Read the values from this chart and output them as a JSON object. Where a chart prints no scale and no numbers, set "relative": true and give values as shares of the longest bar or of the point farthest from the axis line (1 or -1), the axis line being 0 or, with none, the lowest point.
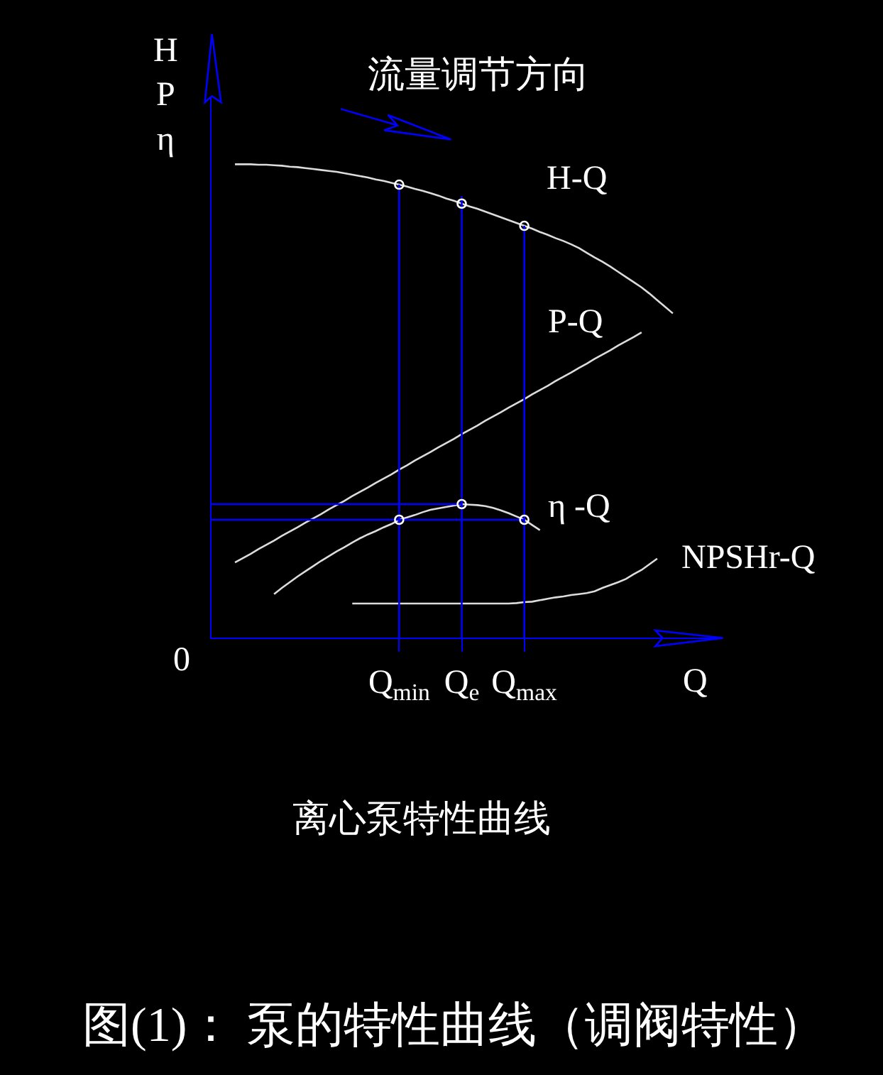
{
  "chart_data": {
    "type": "line",
    "title": "离心泵特性曲线",
    "xlabel": "Q",
    "ylabel": "H\nP\nη",
    "annotations": [
      "流量调节方向",
      "0",
      "图(1)： 泵的特性曲线（调阀特性）"
    ],
    "relative": true,
    "categories": [
      null,
      null,
      null,
      null,
      null,
      null,
      null,
      null,
      null,
      null,
      null,
      null,
      null,
      null,
      null,
      null,
      null,
      null,
      null,
      null,
      null,
      null,
      null,
      null,
      "Q$_{min}$",
      null,
      null,
      null,
      null,
      null,
      null,
      null,
      "Q$_{e}$",
      null,
      null,
      null,
      null,
      null,
      null,
      null,
      "Q$_{max}$",
      null,
      null,
      null,
      null,
      null,
      null,
      null,
      null,
      null,
      null,
      null,
      null,
      null,
      null,
      null,
      null,
      null,
      null,
      null,
      null,
      null,
      null,
      null,
      null,
      null
    ],
    "series": [
      {
        "name": "H-Q",
        "color": "#dcdcdc",
        "values": [
          null,
          null,
          null,
          1.0,
          1.0,
          1.0,
          0.999,
          0.999,
          0.998,
          0.997,
          0.995,
          0.994,
          0.992,
          0.99,
          0.988,
          0.986,
          0.984,
          0.981,
          0.978,
          0.975,
          0.972,
          0.968,
          0.965,
          0.961,
          0.957,
          0.953,
          0.948,
          0.944,
          0.939,
          0.934,
          0.928,
          0.923,
          0.917,
          0.911,
          0.906,
          0.9,
          0.894,
          0.888,
          0.882,
          0.876,
          0.87,
          0.864,
          0.857,
          0.851,
          0.844,
          0.838,
          0.831,
          0.823,
          0.813,
          0.803,
          0.794,
          0.784,
          0.773,
          0.762,
          0.751,
          0.74,
          0.727,
          0.713,
          0.699,
          0.685,
          null,
          null,
          null,
          null,
          null,
          null
        ]
      },
      {
        "name": "P-Q",
        "color": "#dcdcdc",
        "values": [
          null,
          null,
          null,
          0.159,
          0.168,
          0.177,
          0.187,
          0.196,
          0.205,
          0.215,
          0.224,
          0.233,
          0.243,
          0.252,
          0.261,
          0.271,
          0.28,
          0.289,
          0.299,
          0.308,
          0.317,
          0.327,
          0.336,
          0.345,
          0.355,
          0.364,
          0.374,
          0.383,
          0.392,
          0.402,
          0.411,
          0.42,
          0.43,
          0.439,
          0.448,
          0.458,
          0.467,
          0.476,
          0.486,
          0.495,
          0.504,
          0.514,
          0.523,
          0.532,
          0.542,
          0.551,
          0.56,
          0.57,
          0.579,
          0.589,
          0.598,
          0.607,
          0.617,
          0.626,
          0.635,
          0.645,
          null,
          null,
          null,
          null,
          null,
          null,
          null,
          null,
          null,
          null
        ]
      },
      {
        "name": "η -Q",
        "color": "#dcdcdc",
        "values": [
          null,
          null,
          null,
          null,
          null,
          null,
          null,
          null,
          0.092,
          0.105,
          0.117,
          0.129,
          0.14,
          0.151,
          0.162,
          0.172,
          0.182,
          0.191,
          0.201,
          0.21,
          0.218,
          0.225,
          0.233,
          0.24,
          0.249,
          0.254,
          0.259,
          0.265,
          0.27,
          0.273,
          0.276,
          0.279,
          0.282,
          0.281,
          0.28,
          0.278,
          0.274,
          0.269,
          0.263,
          0.256,
          0.249,
          0.238,
          0.227,
          null,
          null,
          null,
          null,
          null,
          null,
          null,
          null,
          null,
          null,
          null,
          null,
          null,
          null,
          null,
          null,
          null,
          null,
          null,
          null,
          null,
          null,
          null
        ]
      },
      {
        "name": "NPSHr-Q",
        "color": "#dcdcdc",
        "values": [
          null,
          null,
          null,
          null,
          null,
          null,
          null,
          null,
          null,
          null,
          null,
          null,
          null,
          null,
          null,
          null,
          null,
          null,
          0.072,
          0.072,
          0.072,
          0.072,
          0.072,
          0.072,
          0.072,
          0.072,
          0.072,
          0.072,
          0.072,
          0.072,
          0.072,
          0.072,
          0.072,
          0.072,
          0.072,
          0.072,
          0.072,
          0.072,
          0.072,
          0.073,
          0.075,
          0.076,
          0.079,
          0.082,
          0.085,
          0.087,
          0.09,
          0.092,
          0.094,
          0.098,
          0.105,
          0.111,
          0.117,
          0.124,
          0.134,
          0.143,
          0.155,
          0.167,
          null,
          null,
          null,
          null,
          null,
          null,
          null,
          null
        ]
      },
      {
        "color": "#0000ff",
        "x": [
          "Q$_{min}$",
          "Q$_{min}$"
        ],
        "values": [
          0,
          0.957
        ]
      },
      {
        "color": "#0000ff",
        "x": [
          "Q$_{e}$",
          "Q$_{e}$"
        ],
        "values": [
          0,
          0.933
        ]
      },
      {
        "color": "#0000ff",
        "x": [
          "Q$_{max}$",
          "Q$_{max}$"
        ],
        "values": [
          0,
          0.87
        ]
      },
      {
        "color": "#0000ff",
        "values": [
          0.249,
          0.249,
          0.249,
          0.249,
          0.249,
          0.249,
          0.249,
          0.249,
          0.249,
          0.249,
          0.249,
          0.249,
          0.249,
          0.249,
          0.249,
          0.249,
          0.249,
          0.249,
          0.249,
          0.249,
          0.249,
          0.249,
          0.249,
          0.249,
          0.249,
          0.249,
          0.249,
          0.249,
          0.249,
          0.249,
          0.249,
          0.249,
          0.249,
          0.249,
          0.249,
          0.249,
          0.249,
          0.249,
          0.249,
          0.249,
          0.249,
          null,
          null,
          null,
          null,
          null,
          null,
          null,
          null,
          null,
          null,
          null,
          null,
          null,
          null,
          null,
          null,
          null,
          null,
          null,
          null,
          null,
          null,
          null,
          null,
          null
        ]
      },
      {
        "color": "#0000ff",
        "values": [
          0.282,
          0.282,
          0.282,
          0.282,
          0.282,
          0.282,
          0.282,
          0.282,
          0.282,
          0.282,
          0.282,
          0.282,
          0.282,
          0.282,
          0.282,
          0.282,
          0.282,
          0.282,
          0.282,
          0.282,
          0.282,
          0.282,
          0.282,
          0.282,
          0.282,
          0.282,
          0.282,
          0.282,
          0.282,
          0.282,
          0.282,
          0.282,
          0.282,
          null,
          null,
          null,
          null,
          null,
          null,
          null,
          null,
          null,
          null,
          null,
          null,
          null,
          null,
          null,
          null,
          null,
          null,
          null,
          null,
          null,
          null,
          null,
          null,
          null,
          null,
          null,
          null,
          null,
          null,
          null,
          null,
          null
        ]
      },
      {
        "type": "scatter",
        "marker": "circle",
        "color": "#ffffff",
        "x": [
          "Q$_{min}$",
          "Q$_{e}$",
          "Q$_{max}$",
          "Q$_{min}$",
          "Q$_{e}$",
          "Q$_{max}$"
        ],
        "values": [
          0.957,
          0.917,
          0.87,
          0.249,
          0.282,
          0.249
        ]
      }
    ]
  }
}
